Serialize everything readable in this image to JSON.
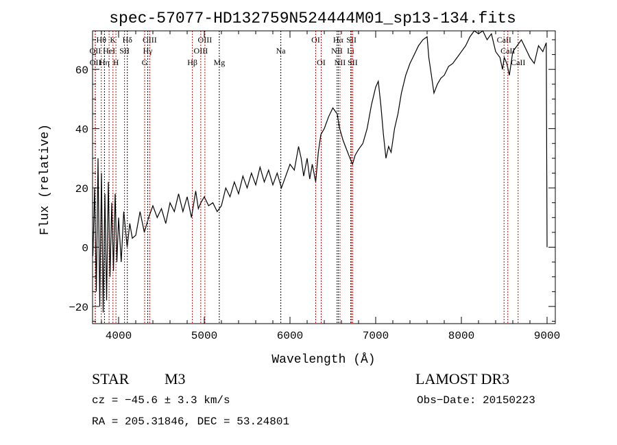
{
  "chart_data": {
    "type": "line",
    "title": "spec-57077-HD132759N524444M01_sp13-134.fits",
    "xlabel": "Wavelength (Å)",
    "ylabel": "Flux (relative)",
    "xlim": [
      3696,
      9096
    ],
    "ylim": [
      -25.8,
      73
    ],
    "xticks": [
      4000,
      5000,
      6000,
      7000,
      8000,
      9000
    ],
    "yticks": [
      -20,
      0,
      20,
      40,
      60
    ],
    "grid": false,
    "series": [
      {
        "name": "spectrum",
        "x": [
          3700,
          3720,
          3740,
          3760,
          3780,
          3800,
          3820,
          3840,
          3860,
          3880,
          3900,
          3920,
          3940,
          3960,
          3980,
          4000,
          4030,
          4060,
          4100,
          4130,
          4160,
          4200,
          4250,
          4300,
          4350,
          4400,
          4450,
          4500,
          4550,
          4600,
          4650,
          4700,
          4750,
          4800,
          4850,
          4900,
          4930,
          4960,
          5000,
          5050,
          5100,
          5150,
          5200,
          5250,
          5300,
          5350,
          5400,
          5450,
          5500,
          5550,
          5600,
          5650,
          5700,
          5750,
          5800,
          5850,
          5900,
          5950,
          6000,
          6050,
          6100,
          6130,
          6160,
          6200,
          6230,
          6260,
          6300,
          6330,
          6360,
          6400,
          6450,
          6500,
          6550,
          6580,
          6620,
          6660,
          6700,
          6730,
          6760,
          6800,
          6850,
          6900,
          6950,
          7000,
          7030,
          7060,
          7090,
          7120,
          7150,
          7180,
          7220,
          7260,
          7300,
          7350,
          7400,
          7450,
          7500,
          7550,
          7600,
          7620,
          7650,
          7680,
          7720,
          7760,
          7800,
          7850,
          7900,
          7950,
          8000,
          8050,
          8100,
          8150,
          8200,
          8250,
          8300,
          8350,
          8400,
          8450,
          8480,
          8500,
          8530,
          8560,
          8600,
          8650,
          8700,
          8750,
          8800,
          8850,
          8900,
          8950,
          8990,
          9000
        ],
        "y": [
          -3,
          20,
          -15,
          30,
          -20,
          25,
          -22,
          18,
          -18,
          22,
          -10,
          15,
          -8,
          18,
          -5,
          10,
          -5,
          12,
          0,
          8,
          3,
          4,
          12,
          5,
          10,
          14,
          10,
          13,
          8,
          15,
          12,
          18,
          12,
          17,
          10,
          19,
          13,
          15,
          17,
          14,
          15,
          12,
          14,
          20,
          17,
          22,
          18,
          24,
          20,
          25,
          21,
          27,
          22,
          26,
          21,
          25,
          20,
          24,
          28,
          26,
          34,
          30,
          24,
          30,
          23,
          28,
          22,
          32,
          38,
          40,
          44,
          47,
          45,
          40,
          36,
          33,
          30,
          28,
          31,
          33,
          35,
          40,
          48,
          54,
          56,
          48,
          38,
          30,
          34,
          32,
          40,
          45,
          52,
          58,
          62,
          65,
          68,
          70,
          71,
          64,
          58,
          52,
          55,
          57,
          58,
          61,
          62,
          64,
          66,
          68,
          71,
          73,
          72,
          74,
          70,
          72,
          66,
          64,
          60,
          64,
          62,
          58,
          66,
          68,
          70,
          67,
          64,
          62,
          68,
          66,
          69,
          0
        ]
      }
    ],
    "line_markers": [
      {
        "label": "Hθ",
        "wavelength": 3798,
        "row": 1,
        "color": "#cc0000"
      },
      {
        "label": "K",
        "wavelength": 3934,
        "row": 1,
        "color": "#cc0000"
      },
      {
        "label": "Hδ",
        "wavelength": 4102,
        "row": 1,
        "color": "#000000"
      },
      {
        "label": "OIII",
        "wavelength": 4363,
        "row": 1,
        "color": "#cc0000"
      },
      {
        "label": "OIII",
        "wavelength": 5007,
        "row": 1,
        "color": "#cc0000"
      },
      {
        "label": "OI",
        "wavelength": 6300,
        "row": 1,
        "color": "#cc0000"
      },
      {
        "label": "Hα",
        "wavelength": 6563,
        "row": 1,
        "color": "#000000"
      },
      {
        "label": "SII",
        "wavelength": 6717,
        "row": 1,
        "color": "#cc0000"
      },
      {
        "label": "CaII",
        "wavelength": 8498,
        "row": 1,
        "color": "#cc0000"
      },
      {
        "label": "OII",
        "wavelength": 3727,
        "row": 2,
        "color": "#cc0000"
      },
      {
        "label": "HeI",
        "wavelength": 3889,
        "row": 2,
        "color": "#cc0000"
      },
      {
        "label": "SII",
        "wavelength": 4069,
        "row": 2,
        "color": "#cc0000"
      },
      {
        "label": "Hγ",
        "wavelength": 4340,
        "row": 2,
        "color": "#000000"
      },
      {
        "label": "OIII",
        "wavelength": 4959,
        "row": 2,
        "color": "#cc0000"
      },
      {
        "label": "Na",
        "wavelength": 5893,
        "row": 2,
        "color": "#000000"
      },
      {
        "label": "NII",
        "wavelength": 6548,
        "row": 2,
        "color": "#cc0000"
      },
      {
        "label": "Li",
        "wavelength": 6708,
        "row": 2,
        "color": "#cc0000"
      },
      {
        "label": "CaII",
        "wavelength": 8542,
        "row": 2,
        "color": "#cc0000"
      },
      {
        "label": "OII",
        "wavelength": 3729,
        "row": 3,
        "color": "#cc0000"
      },
      {
        "label": "Hη",
        "wavelength": 3835,
        "row": 3,
        "color": "#000000"
      },
      {
        "label": "H",
        "wavelength": 3969,
        "row": 3,
        "color": "#cc0000"
      },
      {
        "label": "G",
        "wavelength": 4304,
        "row": 3,
        "color": "#cc0000"
      },
      {
        "label": "Hβ",
        "wavelength": 4861,
        "row": 3,
        "color": "#cc0000"
      },
      {
        "label": "Mg",
        "wavelength": 5175,
        "row": 3,
        "color": "#000000"
      },
      {
        "label": "OI",
        "wavelength": 6364,
        "row": 3,
        "color": "#cc0000"
      },
      {
        "label": "NII",
        "wavelength": 6583,
        "row": 3,
        "color": "#cc0000"
      },
      {
        "label": "SII",
        "wavelength": 6731,
        "row": 3,
        "color": "#cc0000"
      },
      {
        "label": "CaII",
        "wavelength": 8662,
        "row": 3,
        "color": "#cc0000"
      }
    ]
  },
  "info": {
    "object_class": "STAR",
    "subclass": "M3",
    "survey": "LAMOST DR3",
    "cz": "cz = −45.6 ± 3.3 km/s",
    "obs_date": "Obs−Date: 20150223",
    "coords": "RA = 205.31846, DEC =  53.24801"
  }
}
